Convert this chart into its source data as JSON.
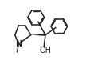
{
  "bg_color": "#ffffff",
  "line_color": "#222222",
  "line_width": 1.1,
  "figsize": [
    1.14,
    0.91
  ],
  "dpi": 100,
  "N_label": "N",
  "N_fontsize": 7,
  "OH_label": "OH",
  "OH_fontsize": 7
}
